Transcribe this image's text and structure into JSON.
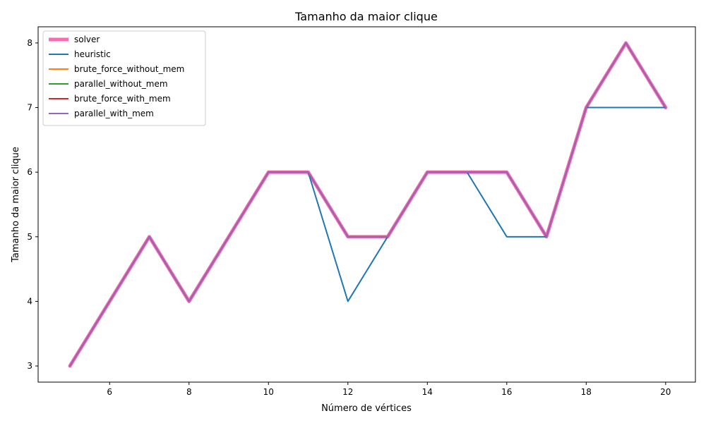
{
  "chart_data": {
    "type": "line",
    "title": "Tamanho da maior clique",
    "xlabel": "Número de vértices",
    "ylabel": "Tamanho da maior clique",
    "x": [
      5,
      6,
      7,
      8,
      9,
      10,
      11,
      12,
      13,
      14,
      15,
      16,
      17,
      18,
      19,
      20
    ],
    "xlim": [
      4.2,
      20.75
    ],
    "ylim": [
      2.75,
      8.25
    ],
    "x_ticks": [
      6,
      8,
      10,
      12,
      14,
      16,
      18,
      20
    ],
    "y_ticks": [
      3,
      4,
      5,
      6,
      7,
      8
    ],
    "grid": false,
    "legend_position": "top-left",
    "series": [
      {
        "name": "solver",
        "color": "#ff69b4",
        "values": [
          3,
          4,
          5,
          4,
          5,
          6,
          6,
          5,
          5,
          6,
          6,
          6,
          5,
          7,
          8,
          7
        ]
      },
      {
        "name": "heuristic",
        "color": "#1f77b4",
        "values": [
          3,
          4,
          5,
          4,
          5,
          6,
          6,
          4,
          5,
          6,
          6,
          5,
          5,
          7,
          7,
          7
        ]
      },
      {
        "name": "brute_force_without_mem",
        "color": "#ff7f0e",
        "values": [
          3,
          4,
          5,
          4,
          5,
          6,
          6,
          5,
          5,
          6,
          6,
          6,
          5,
          7,
          8,
          7
        ]
      },
      {
        "name": "parallel_without_mem",
        "color": "#2ca02c",
        "values": [
          3,
          4,
          5,
          4,
          5,
          6,
          6,
          5,
          5,
          6,
          6,
          6,
          5,
          7,
          8,
          7
        ]
      },
      {
        "name": "brute_force_with_mem",
        "color": "#d62728",
        "values": [
          3,
          4,
          5,
          4,
          5,
          6,
          6,
          5,
          5,
          6,
          6,
          6,
          5,
          7,
          8,
          7
        ]
      },
      {
        "name": "parallel_with_mem",
        "color": "#9467bd",
        "values": [
          3,
          4,
          5,
          4,
          5,
          6,
          6,
          5,
          5,
          6,
          6,
          6,
          5,
          7,
          8,
          7
        ]
      }
    ]
  }
}
